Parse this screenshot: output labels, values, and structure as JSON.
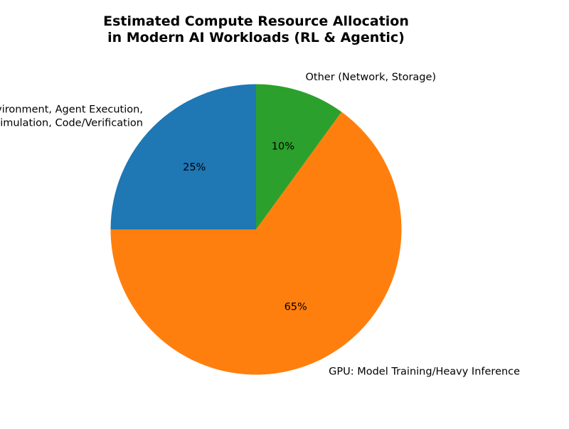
{
  "chart_data": {
    "type": "pie",
    "title": "Estimated Compute Resource Allocation\nin Modern AI Workloads (RL & Agentic)",
    "start_angle_deg": 90,
    "direction": "counterclockwise",
    "autopct": "%d%%",
    "slices": [
      {
        "label": "CPU: RL Environment, Agent Execution,\nSimulation, Code/Verification",
        "value": 25,
        "pct_label": "25%",
        "color": "#1f77b4"
      },
      {
        "label": "GPU: Model Training/Heavy Inference",
        "value": 65,
        "pct_label": "65%",
        "color": "#ff7f0e"
      },
      {
        "label": "Other (Network, Storage)",
        "value": 10,
        "pct_label": "10%",
        "color": "#2ca02c"
      }
    ]
  }
}
